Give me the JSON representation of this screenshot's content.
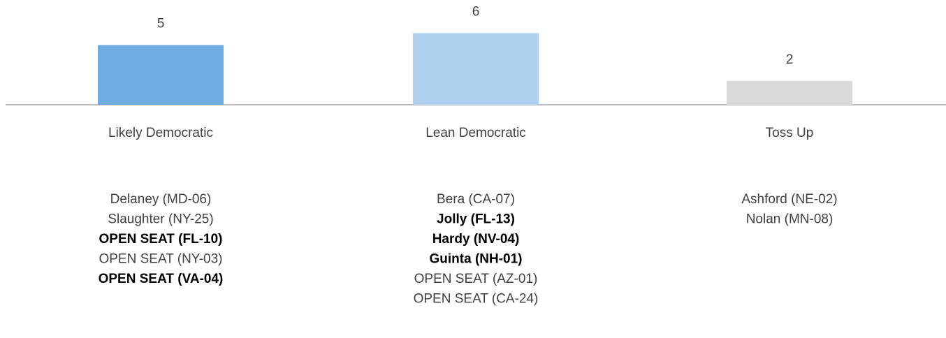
{
  "chart_data": {
    "type": "bar",
    "categories": [
      "Likely Democratic",
      "Lean Democratic",
      "Toss Up"
    ],
    "values": [
      5,
      6,
      2
    ],
    "colors": [
      "#6fabe0",
      "#afd0ef",
      "#d9d9d9"
    ],
    "members": [
      [
        {
          "name": "Delaney (MD-06)",
          "bold": false
        },
        {
          "name": "Slaughter (NY-25)",
          "bold": false
        },
        {
          "name": "OPEN SEAT (FL-10)",
          "bold": true
        },
        {
          "name": "OPEN SEAT (NY-03)",
          "bold": false
        },
        {
          "name": "OPEN SEAT (VA-04)",
          "bold": true
        }
      ],
      [
        {
          "name": "Bera (CA-07)",
          "bold": false
        },
        {
          "name": "Jolly (FL-13)",
          "bold": true
        },
        {
          "name": "Hardy (NV-04)",
          "bold": true
        },
        {
          "name": "Guinta (NH-01)",
          "bold": true
        },
        {
          "name": "OPEN SEAT (AZ-01)",
          "bold": false
        },
        {
          "name": "OPEN SEAT (CA-24)",
          "bold": false
        }
      ],
      [
        {
          "name": "Ashford (NE-02)",
          "bold": false
        },
        {
          "name": "Nolan (MN-08)",
          "bold": false
        }
      ]
    ]
  }
}
